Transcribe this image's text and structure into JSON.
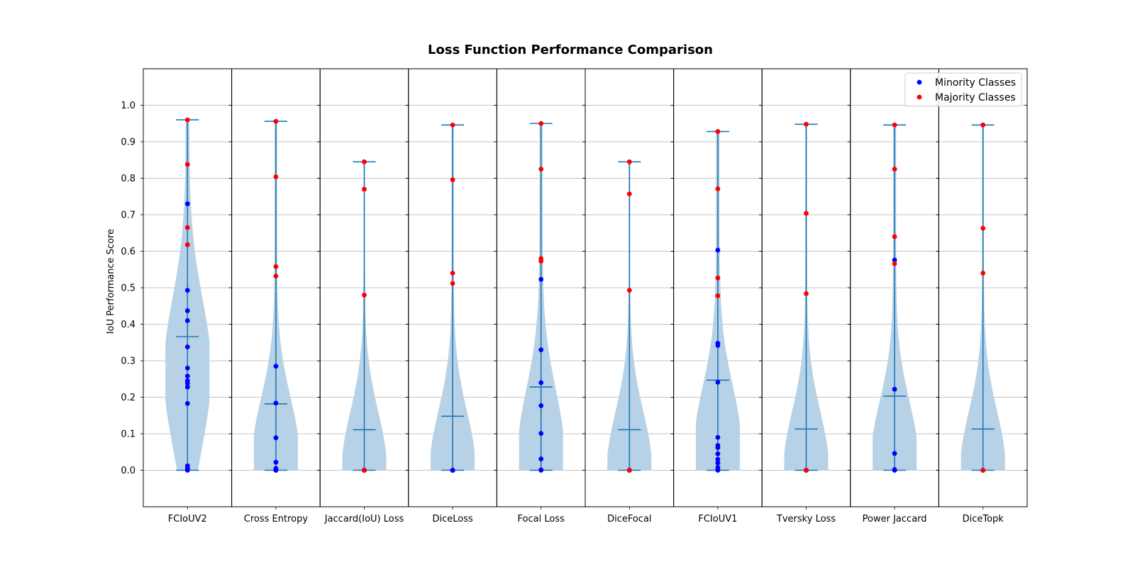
{
  "chart_data": {
    "type": "violin",
    "title": "Loss Function Performance Comparison",
    "xlabel": "",
    "ylabel": "IoU Performance Score",
    "ylim": [
      -0.1,
      1.1
    ],
    "yticks": [
      "0.0",
      "0.1",
      "0.2",
      "0.3",
      "0.4",
      "0.5",
      "0.6",
      "0.7",
      "0.8",
      "0.9",
      "1.0"
    ],
    "ytick_values": [
      0.0,
      0.1,
      0.2,
      0.3,
      0.4,
      0.5,
      0.6,
      0.7,
      0.8,
      0.9,
      1.0
    ],
    "grid": "y",
    "legend_position": "top-right",
    "colors": {
      "violin_fill": "#b7d1e6",
      "violin_line": "#1f77b4",
      "minority": "#0000ff",
      "majority": "#ff0000",
      "grid": "#b0b0b0"
    },
    "legend": [
      {
        "label": "Minority Classes",
        "color": "#0000ff"
      },
      {
        "label": "Majority Classes",
        "color": "#ff0000"
      }
    ],
    "categories": [
      "FCIoUV2",
      "Cross Entropy",
      "Jaccard(IoU) Loss",
      "DiceLoss",
      "Focal Loss",
      "DiceFocal",
      "FCIoUV1",
      "Tversky Loss",
      "Power Jaccard",
      "DiceTopk"
    ],
    "series": [
      {
        "category": "FCIoUV2",
        "min": 0.0,
        "max": 0.96,
        "mean": 0.366,
        "minority": [
          0.73,
          0.493,
          0.437,
          0.41,
          0.338,
          0.28,
          0.258,
          0.245,
          0.238,
          0.228,
          0.183,
          0.012,
          0.005,
          0.001,
          0.0
        ],
        "majority": [
          0.96,
          0.838,
          0.665,
          0.618
        ],
        "density_peak": 0.27,
        "density_spread": 0.2,
        "tail": 0.08
      },
      {
        "category": "Cross Entropy",
        "min": 0.0,
        "max": 0.956,
        "mean": 0.182,
        "minority": [
          0.285,
          0.184,
          0.089,
          0.022,
          0.005,
          0.002,
          0.0,
          0.0
        ],
        "majority": [
          0.956,
          0.804,
          0.558,
          0.532
        ],
        "density_peak": 0.04,
        "density_spread": 0.16,
        "tail": 0.06
      },
      {
        "category": "Jaccard(IoU) Loss",
        "min": 0.0,
        "max": 0.845,
        "mean": 0.111,
        "minority": [
          0.0,
          0.0,
          0.0,
          0.0,
          0.0
        ],
        "majority": [
          0.845,
          0.77,
          0.48,
          0.0
        ],
        "density_peak": 0.0,
        "density_spread": 0.16,
        "tail": 0.03
      },
      {
        "category": "DiceLoss",
        "min": 0.0,
        "max": 0.946,
        "mean": 0.148,
        "minority": [
          0.0,
          0.0,
          0.0,
          0.0
        ],
        "majority": [
          0.946,
          0.796,
          0.54,
          0.512
        ],
        "density_peak": 0.0,
        "density_spread": 0.16,
        "tail": 0.05
      },
      {
        "category": "Focal Loss",
        "min": 0.0,
        "max": 0.95,
        "mean": 0.228,
        "minority": [
          0.523,
          0.33,
          0.24,
          0.177,
          0.101,
          0.031,
          0.001,
          0.0
        ],
        "majority": [
          0.95,
          0.825,
          0.58,
          0.573
        ],
        "density_peak": 0.04,
        "density_spread": 0.18,
        "tail": 0.07
      },
      {
        "category": "DiceFocal",
        "min": 0.0,
        "max": 0.845,
        "mean": 0.111,
        "minority": [
          0.0,
          0.0,
          0.0
        ],
        "majority": [
          0.845,
          0.757,
          0.493,
          0.0
        ],
        "density_peak": 0.0,
        "density_spread": 0.16,
        "tail": 0.03
      },
      {
        "category": "FCIoUV1",
        "min": 0.0,
        "max": 0.928,
        "mean": 0.247,
        "minority": [
          0.603,
          0.348,
          0.342,
          0.241,
          0.09,
          0.068,
          0.062,
          0.045,
          0.03,
          0.02,
          0.008,
          0.002,
          0.0
        ],
        "majority": [
          0.928,
          0.771,
          0.527,
          0.478
        ],
        "density_peak": 0.06,
        "density_spread": 0.17,
        "tail": 0.08
      },
      {
        "category": "Tversky Loss",
        "min": 0.0,
        "max": 0.948,
        "mean": 0.113,
        "minority": [
          0.0,
          0.0,
          0.0
        ],
        "majority": [
          0.948,
          0.704,
          0.484,
          0.0
        ],
        "density_peak": 0.0,
        "density_spread": 0.16,
        "tail": 0.04
      },
      {
        "category": "Power Jaccard",
        "min": 0.0,
        "max": 0.946,
        "mean": 0.203,
        "minority": [
          0.576,
          0.222,
          0.046,
          0.002,
          0.0
        ],
        "majority": [
          0.946,
          0.825,
          0.64,
          0.566
        ],
        "density_peak": 0.03,
        "density_spread": 0.16,
        "tail": 0.07
      },
      {
        "category": "DiceTopk",
        "min": 0.0,
        "max": 0.946,
        "mean": 0.113,
        "minority": [
          0.0,
          0.0
        ],
        "majority": [
          0.946,
          0.663,
          0.54,
          0.0
        ],
        "density_peak": 0.0,
        "density_spread": 0.16,
        "tail": 0.04
      }
    ]
  }
}
